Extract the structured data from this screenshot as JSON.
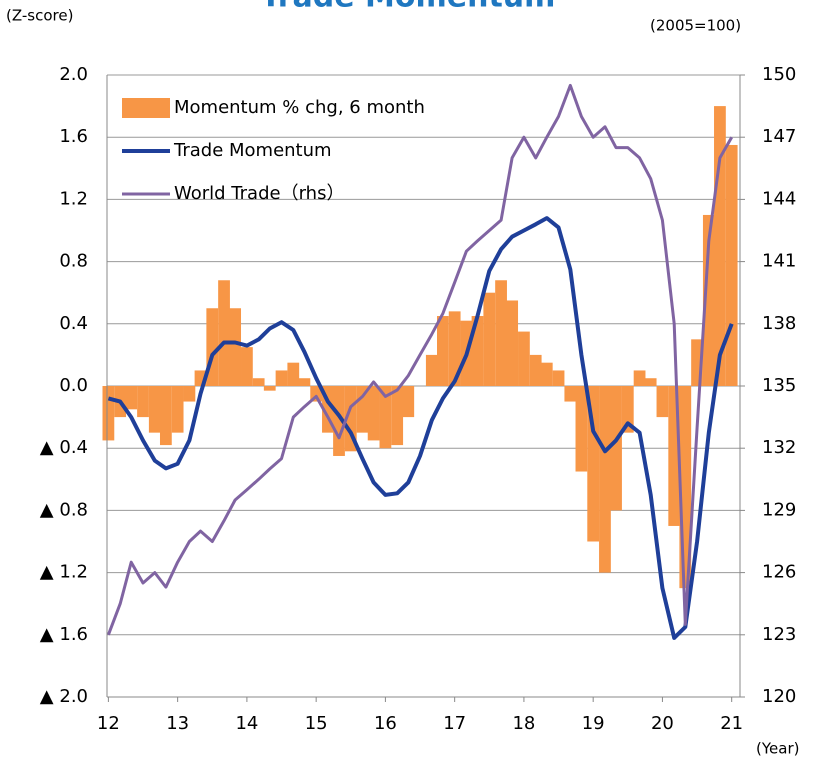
{
  "chart_data": {
    "type": "bar-line",
    "title": "Trade Momentum",
    "y_label": "(Z-score)",
    "y2_label": "(2005=100)",
    "x_label": "(Year)",
    "x": [
      12,
      12.17,
      12.33,
      12.5,
      12.67,
      12.83,
      13,
      13.17,
      13.33,
      13.5,
      13.67,
      13.83,
      14,
      14.17,
      14.33,
      14.5,
      14.67,
      14.83,
      15,
      15.17,
      15.33,
      15.5,
      15.67,
      15.83,
      16,
      16.17,
      16.33,
      16.5,
      16.67,
      16.83,
      17,
      17.17,
      17.33,
      17.5,
      17.67,
      17.83,
      18,
      18.17,
      18.33,
      18.5,
      18.67,
      18.83,
      19,
      19.17,
      19.33,
      19.5,
      19.67,
      19.83,
      20,
      20.17,
      20.33,
      20.5,
      20.67,
      20.83,
      21
    ],
    "series": [
      {
        "name": "Momentum % chg, 6 month",
        "type": "bar",
        "color": "#f79646",
        "values": [
          -0.35,
          -0.2,
          -0.15,
          -0.2,
          -0.3,
          -0.38,
          -0.3,
          -0.1,
          0.1,
          0.5,
          0.68,
          0.5,
          0.25,
          0.05,
          -0.03,
          0.1,
          0.15,
          0.05,
          -0.1,
          -0.3,
          -0.45,
          -0.42,
          -0.3,
          -0.35,
          -0.4,
          -0.38,
          -0.2,
          0.0,
          0.2,
          0.45,
          0.48,
          0.42,
          0.45,
          0.6,
          0.68,
          0.55,
          0.35,
          0.2,
          0.15,
          0.1,
          -0.1,
          -0.55,
          -1.0,
          -1.2,
          -0.8,
          -0.3,
          0.1,
          0.05,
          -0.2,
          -0.9,
          -1.3,
          0.3,
          1.1,
          1.8,
          1.55
        ]
      },
      {
        "name": "Trade Momentum",
        "type": "line",
        "color": "#1f3f99",
        "values": [
          -0.08,
          -0.1,
          -0.2,
          -0.35,
          -0.48,
          -0.53,
          -0.5,
          -0.35,
          -0.05,
          0.2,
          0.28,
          0.28,
          0.26,
          0.3,
          0.37,
          0.41,
          0.36,
          0.22,
          0.05,
          -0.1,
          -0.19,
          -0.3,
          -0.47,
          -0.62,
          -0.7,
          -0.69,
          -0.62,
          -0.45,
          -0.22,
          -0.08,
          0.03,
          0.2,
          0.45,
          0.74,
          0.88,
          0.96,
          1.0,
          1.04,
          1.08,
          1.02,
          0.75,
          0.2,
          -0.29,
          -0.42,
          -0.35,
          -0.24,
          -0.3,
          -0.7,
          -1.3,
          -1.62,
          -1.55,
          -1.0,
          -0.3,
          0.2,
          0.4
        ]
      },
      {
        "name": "World Trade（rhs）",
        "type": "line",
        "axis": "y2",
        "color": "#8064a2",
        "values": [
          123,
          124.5,
          126.5,
          125.5,
          126,
          125.3,
          126.5,
          127.5,
          128,
          127.5,
          128.5,
          129.5,
          130,
          130.5,
          131,
          131.5,
          133.5,
          134,
          134.5,
          133.5,
          132.5,
          134,
          134.5,
          135.2,
          134.5,
          134.8,
          135.5,
          136.5,
          137.5,
          138.5,
          140,
          141.5,
          142,
          142.5,
          143,
          146,
          147,
          146,
          147,
          148,
          149.5,
          148,
          147,
          147.5,
          146.5,
          146.5,
          146,
          145,
          143,
          138,
          123.5,
          133,
          142,
          146,
          147
        ]
      }
    ],
    "xlim": [
      11.98,
      21.12
    ],
    "xticks": [
      12,
      13,
      14,
      15,
      16,
      17,
      18,
      19,
      20,
      21
    ],
    "ylim": [
      -2,
      2
    ],
    "yticks": [
      {
        "value": 2,
        "label": "2.0"
      },
      {
        "value": 1.6,
        "label": "1.6"
      },
      {
        "value": 1.2,
        "label": "1.2"
      },
      {
        "value": 0.8,
        "label": "0.8"
      },
      {
        "value": 0.4,
        "label": "0.4"
      },
      {
        "value": 0,
        "label": "0.0"
      },
      {
        "value": -0.4,
        "label": "▲ 0.4"
      },
      {
        "value": -0.8,
        "label": "▲ 0.8"
      },
      {
        "value": -1.2,
        "label": "▲ 1.2"
      },
      {
        "value": -1.6,
        "label": "▲ 1.6"
      },
      {
        "value": -2,
        "label": "▲ 2.0"
      }
    ],
    "y2lim": [
      120,
      150
    ],
    "y2ticks": [
      120,
      123,
      126,
      129,
      132,
      135,
      138,
      141,
      144,
      147,
      150
    ],
    "grid": true,
    "legend": "upper left"
  }
}
